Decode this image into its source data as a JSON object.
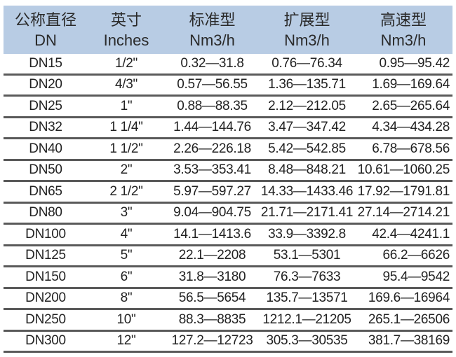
{
  "header": [
    {
      "title": "公称直径",
      "unit": "DN"
    },
    {
      "title": "英寸",
      "unit": "Inches"
    },
    {
      "title": "标准型",
      "unit": "Nm3/h"
    },
    {
      "title": "扩展型",
      "unit": "Nm3/h"
    },
    {
      "title": "高速型",
      "unit": "Nm3/h"
    }
  ],
  "rows": [
    [
      "DN15",
      "1/2\"",
      "0.32—31.8",
      "0.76—76.34",
      "0.95—95.42"
    ],
    [
      "DN20",
      "4/3\"",
      "0.57—56.55",
      "1.36—135.71",
      "1.69—169.64"
    ],
    [
      "DN25",
      "1\"",
      "0.88—88.35",
      "2.12—212.05",
      "2.65—265.64"
    ],
    [
      "DN32",
      "1 1/4\"",
      "1.44—144.76",
      "3.47—347.42",
      "4.34—434.28"
    ],
    [
      "DN40",
      "1 1/2\"",
      "2.26—226.18",
      "5.42—542.85",
      "6.78—678.56"
    ],
    [
      "DN50",
      "2\"",
      "3.53—353.41",
      "8.48—848.21",
      "10.61—1060.25"
    ],
    [
      "DN65",
      "2 1/2\"",
      "5.97—597.27",
      "14.33—1433.46",
      "17.92—1791.81"
    ],
    [
      "DN80",
      "3\"",
      "9.04—904.75",
      "21.71—2171.41",
      "27.14—2714.21"
    ],
    [
      "DN100",
      "4\"",
      "14.1—1413.6",
      "33.9—3392.8",
      "42.4—4241.1"
    ],
    [
      "DN125",
      "5\"",
      "22.1—2208",
      "53.1—5301",
      "66.2—6626"
    ],
    [
      "DN150",
      "6\"",
      "31.8—3180",
      "76.3—7633",
      "95.4—9542"
    ],
    [
      "DN200",
      "8\"",
      "56.5—5654",
      "135.7—13571",
      "169.6—16964"
    ],
    [
      "DN250",
      "10\"",
      "88.3—8835",
      "1212.1—21205",
      "265.1—26506"
    ],
    [
      "DN300",
      "12\"",
      "127.2—12723",
      "305.3—30535",
      "381.7—38169"
    ]
  ],
  "colors": {
    "header_bg": "#b8cce4",
    "divider": "#5a5a5a"
  }
}
